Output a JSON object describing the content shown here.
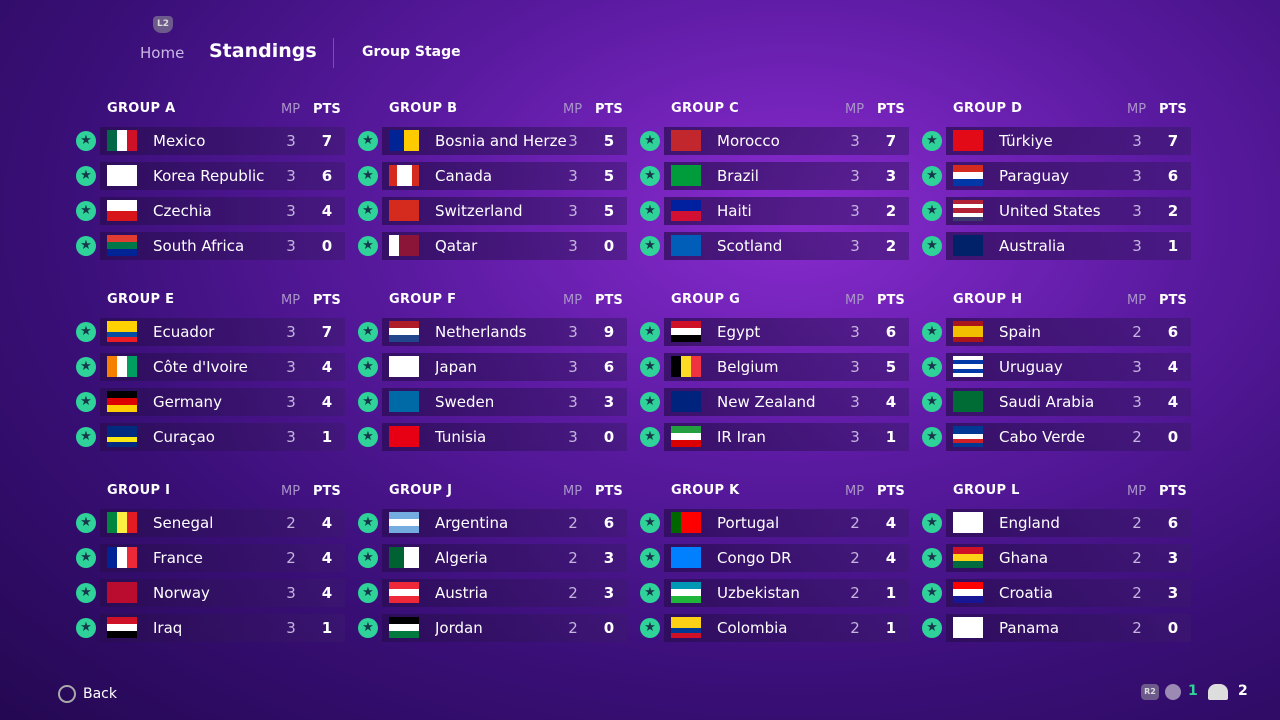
{
  "nav": {
    "badge": "L2",
    "home": "Home",
    "current": "Standings",
    "stage": "Group Stage"
  },
  "groups": [
    {
      "name": "GROUP A",
      "columns": [
        "MP",
        "PTS"
      ],
      "rows": [
        {
          "team": "Mexico",
          "mp": 3,
          "pts": 7
        },
        {
          "team": "Korea Republic",
          "mp": 3,
          "pts": 6
        },
        {
          "team": "Czechia",
          "mp": 3,
          "pts": 4
        },
        {
          "team": "South Africa",
          "mp": 3,
          "pts": 0
        }
      ]
    },
    {
      "name": "GROUP B",
      "columns": [
        "MP",
        "PTS"
      ],
      "rows": [
        {
          "team": "Bosnia and Herzegovina",
          "mp": 3,
          "pts": 5
        },
        {
          "team": "Canada",
          "mp": 3,
          "pts": 5
        },
        {
          "team": "Switzerland",
          "mp": 3,
          "pts": 5
        },
        {
          "team": "Qatar",
          "mp": 3,
          "pts": 0
        }
      ]
    },
    {
      "name": "GROUP C",
      "columns": [
        "MP",
        "PTS"
      ],
      "rows": [
        {
          "team": "Morocco",
          "mp": 3,
          "pts": 7
        },
        {
          "team": "Brazil",
          "mp": 3,
          "pts": 3
        },
        {
          "team": "Haiti",
          "mp": 3,
          "pts": 2
        },
        {
          "team": "Scotland",
          "mp": 3,
          "pts": 2
        }
      ]
    },
    {
      "name": "GROUP D",
      "columns": [
        "MP",
        "PTS"
      ],
      "rows": [
        {
          "team": "Türkiye",
          "mp": 3,
          "pts": 7
        },
        {
          "team": "Paraguay",
          "mp": 3,
          "pts": 6
        },
        {
          "team": "United States",
          "mp": 3,
          "pts": 2
        },
        {
          "team": "Australia",
          "mp": 3,
          "pts": 1
        }
      ]
    },
    {
      "name": "GROUP E",
      "columns": [
        "MP",
        "PTS"
      ],
      "rows": [
        {
          "team": "Ecuador",
          "mp": 3,
          "pts": 7
        },
        {
          "team": "Côte d'Ivoire",
          "mp": 3,
          "pts": 4
        },
        {
          "team": "Germany",
          "mp": 3,
          "pts": 4
        },
        {
          "team": "Curaçao",
          "mp": 3,
          "pts": 1
        }
      ]
    },
    {
      "name": "GROUP F",
      "columns": [
        "MP",
        "PTS"
      ],
      "rows": [
        {
          "team": "Netherlands",
          "mp": 3,
          "pts": 9
        },
        {
          "team": "Japan",
          "mp": 3,
          "pts": 6
        },
        {
          "team": "Sweden",
          "mp": 3,
          "pts": 3
        },
        {
          "team": "Tunisia",
          "mp": 3,
          "pts": 0
        }
      ]
    },
    {
      "name": "GROUP G",
      "columns": [
        "MP",
        "PTS"
      ],
      "rows": [
        {
          "team": "Egypt",
          "mp": 3,
          "pts": 6
        },
        {
          "team": "Belgium",
          "mp": 3,
          "pts": 5
        },
        {
          "team": "New Zealand",
          "mp": 3,
          "pts": 4
        },
        {
          "team": "IR Iran",
          "mp": 3,
          "pts": 1
        }
      ]
    },
    {
      "name": "GROUP H",
      "columns": [
        "MP",
        "PTS"
      ],
      "rows": [
        {
          "team": "Spain",
          "mp": 2,
          "pts": 6
        },
        {
          "team": "Uruguay",
          "mp": 3,
          "pts": 4
        },
        {
          "team": "Saudi Arabia",
          "mp": 3,
          "pts": 4
        },
        {
          "team": "Cabo Verde",
          "mp": 2,
          "pts": 0
        }
      ]
    },
    {
      "name": "GROUP I",
      "columns": [
        "MP",
        "PTS"
      ],
      "rows": [
        {
          "team": "Senegal",
          "mp": 2,
          "pts": 4
        },
        {
          "team": "France",
          "mp": 2,
          "pts": 4
        },
        {
          "team": "Norway",
          "mp": 3,
          "pts": 4
        },
        {
          "team": "Iraq",
          "mp": 3,
          "pts": 1
        }
      ]
    },
    {
      "name": "GROUP J",
      "columns": [
        "MP",
        "PTS"
      ],
      "rows": [
        {
          "team": "Argentina",
          "mp": 2,
          "pts": 6
        },
        {
          "team": "Algeria",
          "mp": 2,
          "pts": 3
        },
        {
          "team": "Austria",
          "mp": 2,
          "pts": 3
        },
        {
          "team": "Jordan",
          "mp": 2,
          "pts": 0
        }
      ]
    },
    {
      "name": "GROUP K",
      "columns": [
        "MP",
        "PTS"
      ],
      "rows": [
        {
          "team": "Portugal",
          "mp": 2,
          "pts": 4
        },
        {
          "team": "Congo DR",
          "mp": 2,
          "pts": 4
        },
        {
          "team": "Uzbekistan",
          "mp": 2,
          "pts": 1
        },
        {
          "team": "Colombia",
          "mp": 2,
          "pts": 1
        }
      ]
    },
    {
      "name": "GROUP L",
      "columns": [
        "MP",
        "PTS"
      ],
      "rows": [
        {
          "team": "England",
          "mp": 2,
          "pts": 6
        },
        {
          "team": "Ghana",
          "mp": 2,
          "pts": 3
        },
        {
          "team": "Croatia",
          "mp": 2,
          "pts": 3
        },
        {
          "team": "Panama",
          "mp": 2,
          "pts": 0
        }
      ]
    }
  ],
  "footer": {
    "back": "Back",
    "r2": "R2",
    "count_a": 1,
    "count_b": 2
  }
}
